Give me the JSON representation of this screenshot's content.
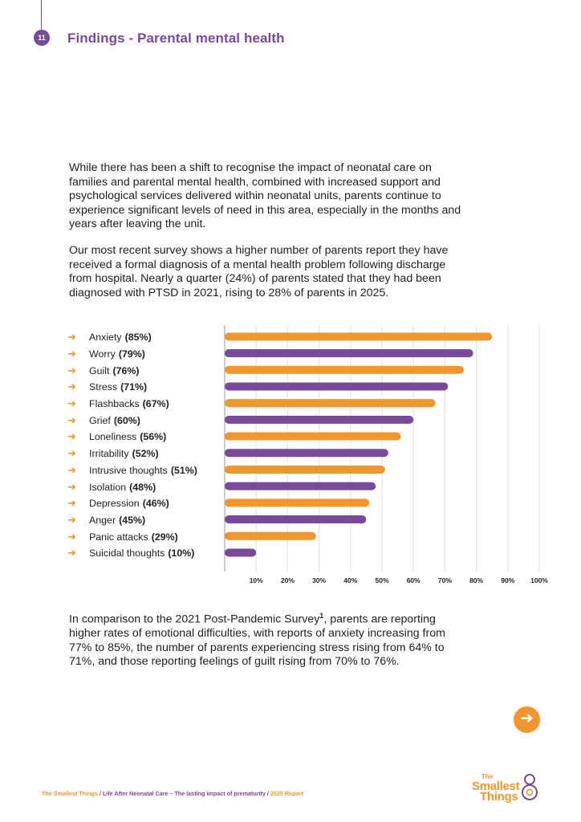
{
  "header": {
    "page_number": "11",
    "title": "Findings - Parental mental health"
  },
  "paragraphs": {
    "intro": "While there has been a shift to recognise the impact of neonatal care on families and parental mental health, combined with increased support and psychological services delivered within neonatal units, parents continue to experience significant levels of need in this area, especially in the months and years after leaving the unit.",
    "survey": "Our most recent survey shows a higher number of parents report they have received a formal diagnosis of a mental health problem following discharge from hospital. Nearly a quarter (24%) of parents stated that they had been diagnosed with PTSD in 2021, rising to 28% of parents in 2025.",
    "comparison_before": "In comparison to the 2021 Post-Pandemic Survey",
    "comparison_sup": "1",
    "comparison_after": ", parents are reporting higher rates of emotional difficulties, with reports of anxiety increasing from 77% to 85%, the number of parents experiencing stress rising from 64% to 71%, and those reporting feelings of guilt rising from 70% to 76%."
  },
  "legend": [
    {
      "name": "Anxiety",
      "pct": "(85%)"
    },
    {
      "name": "Worry",
      "pct": "(79%)"
    },
    {
      "name": "Guilt",
      "pct": "(76%)"
    },
    {
      "name": "Stress",
      "pct": "(71%)"
    },
    {
      "name": "Flashbacks",
      "pct": "(67%)"
    },
    {
      "name": "Grief",
      "pct": "(60%)"
    },
    {
      "name": "Loneliness",
      "pct": "(56%)"
    },
    {
      "name": "Irritability",
      "pct": "(52%)"
    },
    {
      "name": "Intrusive thoughts",
      "pct": "(51%)"
    },
    {
      "name": "Isolation",
      "pct": "(48%)"
    },
    {
      "name": "Depression",
      "pct": "(46%)"
    },
    {
      "name": "Anger",
      "pct": "(45%)"
    },
    {
      "name": "Panic attacks",
      "pct": "(29%)"
    },
    {
      "name": "Suicidal thoughts",
      "pct": "(10%)"
    }
  ],
  "chart_data": {
    "type": "bar",
    "orientation": "horizontal",
    "categories": [
      "Anxiety",
      "Worry",
      "Guilt",
      "Stress",
      "Flashbacks",
      "Grief",
      "Loneliness",
      "Irritability",
      "Intrusive thoughts",
      "Isolation",
      "Depression",
      "Anger",
      "Panic attacks",
      "Suicidal thoughts"
    ],
    "values": [
      85,
      79,
      76,
      71,
      67,
      60,
      56,
      52,
      51,
      48,
      46,
      45,
      29,
      10
    ],
    "bar_colors": [
      "#f0962f",
      "#7a4a9a",
      "#f0962f",
      "#7a4a9a",
      "#f0962f",
      "#7a4a9a",
      "#f0962f",
      "#7a4a9a",
      "#f0962f",
      "#7a4a9a",
      "#f0962f",
      "#7a4a9a",
      "#f0962f",
      "#7a4a9a"
    ],
    "xticks": [
      "10%",
      "20%",
      "30%",
      "40%",
      "50%",
      "60%",
      "70%",
      "80%",
      "90%",
      "100%"
    ],
    "xlim": [
      0,
      100
    ],
    "grid": true,
    "title": "",
    "xlabel": "",
    "ylabel": ""
  },
  "footer": {
    "org": "The Smallest Things",
    "sep1": " / ",
    "report_title": "Life After Neonatal Care – The lasting impact of prematurity",
    "sep2": " / ",
    "year": "2025 Report"
  },
  "logo": {
    "line1": "The",
    "line2": "Smallest",
    "line3": "Things"
  },
  "colors": {
    "orange": "#f0962f",
    "purple": "#7a4a9a"
  },
  "icons": {
    "next": "arrow-right-circle-icon",
    "bullet": "arrow-right-icon"
  }
}
